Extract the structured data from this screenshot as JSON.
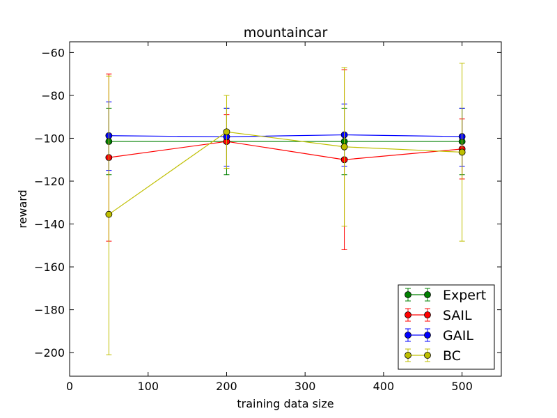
{
  "chart_data": {
    "type": "line",
    "title": "mountaincar",
    "xlabel": "training data size",
    "ylabel": "reward",
    "xlim": [
      0,
      550
    ],
    "ylim": [
      -211,
      -55
    ],
    "xticks": [
      0,
      100,
      200,
      300,
      400,
      500
    ],
    "yticks": [
      -200,
      -180,
      -160,
      -140,
      -120,
      -100,
      -80,
      -60
    ],
    "grid": false,
    "legend_position": "lower-right",
    "x": [
      50,
      200,
      350,
      500
    ],
    "series": [
      {
        "name": "Expert",
        "color": "#008000",
        "values": [
          -101.5,
          -101.5,
          -101.5,
          -101.5
        ],
        "err_low": [
          -117,
          -117,
          -117,
          -117
        ],
        "err_high": [
          -86,
          -86,
          -86,
          -86
        ]
      },
      {
        "name": "SAIL",
        "color": "#ff0000",
        "values": [
          -109,
          -101.5,
          -110,
          -105
        ],
        "err_low": [
          -148,
          -114,
          -152,
          -119
        ],
        "err_high": [
          -70,
          -89,
          -68,
          -91
        ]
      },
      {
        "name": "GAIL",
        "color": "#0000ff",
        "values": [
          -98.8,
          -99.3,
          -98.4,
          -99.2
        ],
        "err_low": [
          -115,
          -113,
          -113,
          -113
        ],
        "err_high": [
          -83,
          -86,
          -84,
          -86
        ]
      },
      {
        "name": "BC",
        "color": "#bfbf00",
        "values": [
          -135.5,
          -97,
          -104,
          -106.5
        ],
        "err_low": [
          -201,
          -114,
          -141,
          -148
        ],
        "err_high": [
          -71,
          -80,
          -67,
          -65
        ]
      }
    ]
  }
}
